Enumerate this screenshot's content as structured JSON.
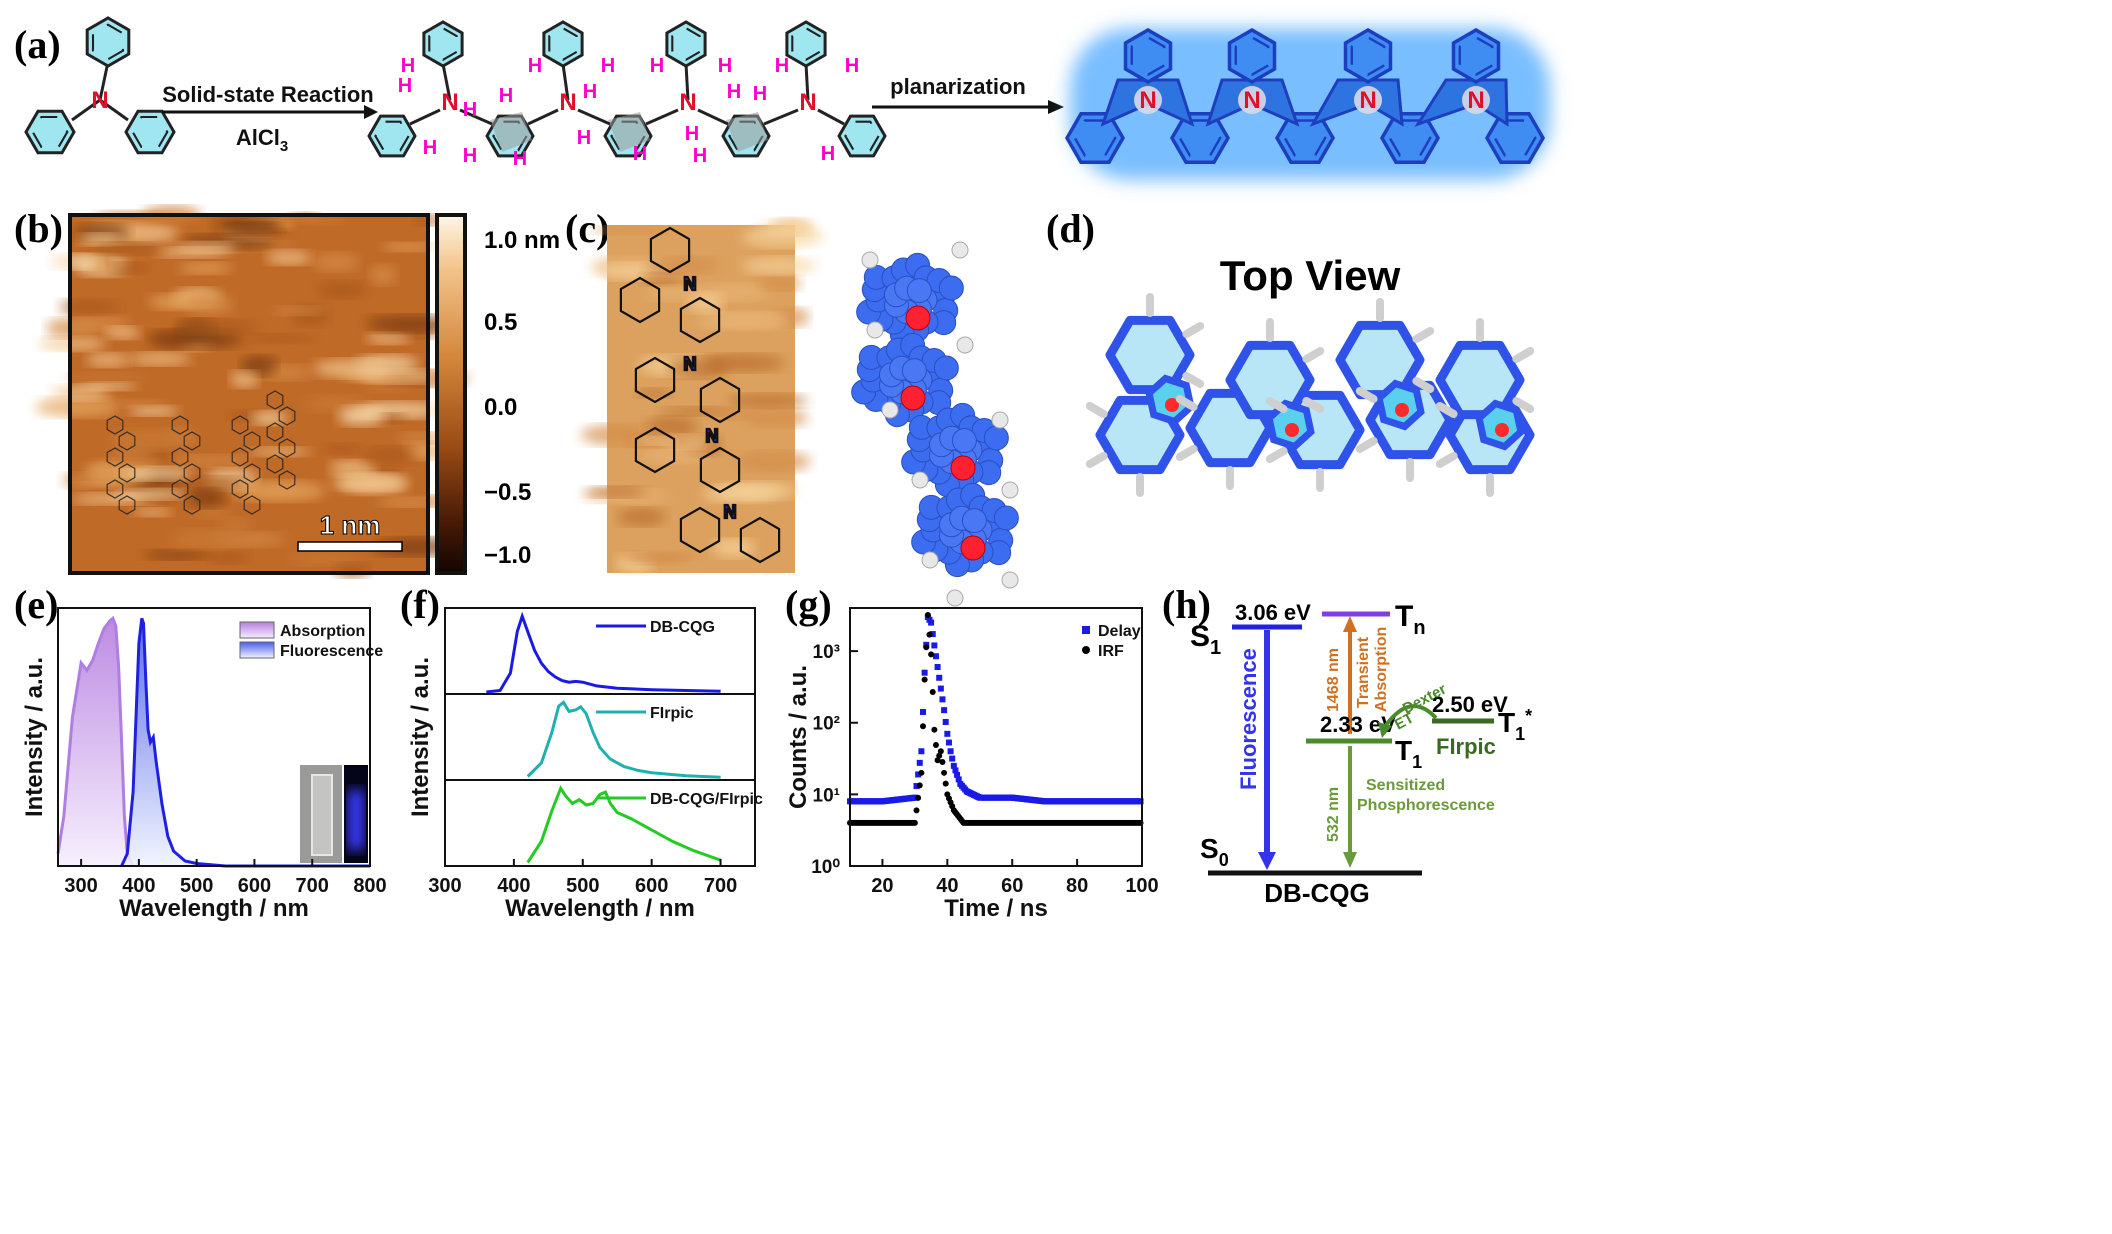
{
  "panels": {
    "a": "(a)",
    "b": "(b)",
    "c": "(c)",
    "d": "(d)",
    "e": "(e)",
    "f": "(f)",
    "g": "(g)",
    "h": "(h)"
  },
  "scheme": {
    "step1_top": "Solid-state Reaction",
    "step1_bottom": "AlCl",
    "step1_bottom_sub": "3",
    "step2": "planarization",
    "N": "N",
    "H": "H"
  },
  "stm": {
    "colorbar": [
      "1.0 nm",
      "0.5",
      "0.0",
      "−0.5",
      "−1.0"
    ],
    "scale": "1 nm"
  },
  "topview": {
    "title": "Top View"
  },
  "colors": {
    "glow": "#4da8ff",
    "ring_fill": "#9fe6f0",
    "N": "#e0102a",
    "H": "#ff00cc"
  },
  "chart_data": [
    {
      "type": "area",
      "panel": "e",
      "xlabel": "Wavelength / nm",
      "ylabel": "Intensity / a.u.",
      "xlim": [
        260,
        800
      ],
      "xticks": [
        "300",
        "400",
        "500",
        "600",
        "700",
        "800"
      ],
      "legend": "top-right",
      "series": [
        {
          "name": "Absorption",
          "color": "#b07de0",
          "x": [
            260,
            270,
            285,
            300,
            310,
            320,
            330,
            340,
            350,
            355,
            360,
            365,
            370,
            375,
            380,
            390
          ],
          "y": [
            0.05,
            0.2,
            0.6,
            0.82,
            0.79,
            0.83,
            0.9,
            0.96,
            0.99,
            1.0,
            0.97,
            0.8,
            0.5,
            0.2,
            0.05,
            0.0
          ]
        },
        {
          "name": "Fluorescence",
          "color": "#2020e0",
          "x": [
            370,
            380,
            390,
            395,
            400,
            405,
            408,
            412,
            416,
            420,
            425,
            430,
            440,
            450,
            460,
            480,
            500,
            550,
            600,
            700,
            800
          ],
          "y": [
            0.0,
            0.05,
            0.3,
            0.6,
            0.9,
            1.0,
            0.98,
            0.75,
            0.55,
            0.5,
            0.52,
            0.42,
            0.25,
            0.12,
            0.06,
            0.02,
            0.01,
            0.0,
            0.0,
            0.0,
            0.0
          ]
        }
      ]
    },
    {
      "type": "line",
      "panel": "f",
      "xlabel": "Wavelength / nm",
      "ylabel": "Intensity / a.u.",
      "xlim": [
        300,
        750
      ],
      "xticks": [
        "300",
        "400",
        "500",
        "600",
        "700"
      ],
      "series": [
        {
          "name": "DB-CQG",
          "color": "#1a1ae6",
          "x": [
            360,
            380,
            395,
            405,
            412,
            420,
            430,
            440,
            450,
            460,
            470,
            480,
            490,
            500,
            520,
            550,
            600,
            650,
            700
          ],
          "y": [
            0.0,
            0.02,
            0.25,
            0.8,
            1.0,
            0.8,
            0.55,
            0.38,
            0.27,
            0.2,
            0.15,
            0.13,
            0.14,
            0.13,
            0.08,
            0.05,
            0.03,
            0.02,
            0.01
          ]
        },
        {
          "name": "FIrpic",
          "color": "#20b0b0",
          "x": [
            420,
            440,
            455,
            465,
            472,
            480,
            490,
            497,
            505,
            515,
            525,
            540,
            560,
            580,
            600,
            650,
            700
          ],
          "y": [
            0.02,
            0.2,
            0.6,
            0.95,
            1.0,
            0.88,
            0.9,
            0.94,
            0.85,
            0.6,
            0.4,
            0.25,
            0.15,
            0.1,
            0.07,
            0.03,
            0.01
          ]
        },
        {
          "name": "DB-CQG/FIrpic",
          "color": "#22cc22",
          "x": [
            420,
            440,
            455,
            468,
            475,
            485,
            495,
            505,
            515,
            525,
            533,
            540,
            550,
            570,
            600,
            630,
            660,
            700
          ],
          "y": [
            0.02,
            0.3,
            0.7,
            1.0,
            0.9,
            0.8,
            0.85,
            0.78,
            0.8,
            0.92,
            0.95,
            0.8,
            0.68,
            0.6,
            0.45,
            0.3,
            0.18,
            0.05
          ]
        }
      ]
    },
    {
      "type": "scatter",
      "panel": "g",
      "xlabel": "Time / ns",
      "ylabel": "Counts / a.u.",
      "xlim": [
        10,
        100
      ],
      "ylim": [
        1,
        4000
      ],
      "yscale": "log",
      "xticks": [
        "20",
        "40",
        "60",
        "80",
        "100"
      ],
      "yticks": [
        "10⁰",
        "10¹",
        "10²",
        "10³"
      ],
      "legend": "top-right",
      "series": [
        {
          "name": "Delay",
          "color": "#1a1ae6",
          "x": [
            10,
            20,
            30,
            32,
            33,
            34,
            35,
            36,
            37,
            38,
            39,
            40,
            41,
            42,
            44,
            46,
            50,
            60,
            70,
            80,
            90,
            100
          ],
          "y": [
            8,
            8,
            9,
            40,
            500,
            3000,
            2500,
            1200,
            600,
            300,
            150,
            70,
            40,
            25,
            14,
            11,
            9,
            9,
            8,
            8,
            8,
            8
          ]
        },
        {
          "name": "IRF",
          "color": "#000000",
          "x": [
            10,
            20,
            30,
            32,
            33,
            34,
            35,
            36,
            37,
            38,
            40,
            42,
            45,
            50,
            60,
            70,
            80,
            90,
            100
          ],
          "y": [
            4,
            4,
            4,
            20,
            400,
            3200,
            900,
            80,
            30,
            40,
            10,
            6,
            4,
            4,
            4,
            4,
            4,
            4,
            4
          ]
        }
      ]
    }
  ],
  "energy": {
    "S1": "S",
    "S1_sub": "1",
    "S1_val": "3.06 eV",
    "Tn": "T",
    "Tn_sub": "n",
    "T1": "T",
    "T1_sub": "1",
    "T1_val": "2.33 eV",
    "T1s": "T",
    "T1s_sub": "1",
    "T1s_sup": "*",
    "T1s_val": "2.50 eV",
    "S0": "S",
    "S0_sub": "0",
    "ground": "DB-CQG",
    "fluor": "Fluorescence",
    "trans1": "Transient",
    "trans2": "Absorption",
    "nm1468": "1468 nm",
    "dexter": "Dexter",
    "et": "ET",
    "firpic": "FIrpic",
    "sens1": "Sensitized",
    "sens2": "Phosphorescence",
    "nm532": "532 nm"
  }
}
